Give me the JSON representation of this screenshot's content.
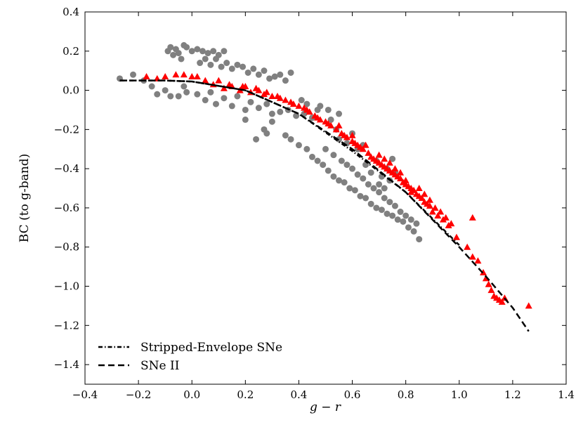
{
  "chart_data": {
    "type": "scatter",
    "title": "",
    "xlabel": "g − r",
    "ylabel": "BC (to g-band)",
    "xlim": [
      -0.4,
      1.4
    ],
    "ylim": [
      -1.5,
      0.4
    ],
    "xticks": [
      -0.4,
      -0.2,
      0.0,
      0.2,
      0.4,
      0.6,
      0.8,
      1.0,
      1.2,
      1.4
    ],
    "yticks": [
      -1.4,
      -1.2,
      -1.0,
      -0.8,
      -0.6,
      -0.4,
      -0.2,
      0.0,
      0.2,
      0.4
    ],
    "xtick_labels": [
      "−0.4",
      "−0.2",
      "0.0",
      "0.2",
      "0.4",
      "0.6",
      "0.8",
      "1.0",
      "1.2",
      "1.4"
    ],
    "ytick_labels": [
      "−1.4",
      "−1.2",
      "−1.0",
      "−0.8",
      "−0.6",
      "−0.4",
      "−0.2",
      "0.0",
      "0.2",
      "0.4"
    ],
    "grid": false,
    "legend_position": "bottom-left",
    "colors": {
      "gray_points": "#808080",
      "red_points": "#ff0000",
      "fit_lines": "#000000"
    },
    "series": [
      {
        "name": "SNe II data",
        "kind": "scatter",
        "marker": "circle",
        "color": "#808080",
        "points": [
          [
            -0.27,
            0.06
          ],
          [
            -0.22,
            0.08
          ],
          [
            -0.18,
            0.05
          ],
          [
            -0.15,
            0.02
          ],
          [
            -0.13,
            -0.02
          ],
          [
            -0.1,
            0.0
          ],
          [
            -0.08,
            -0.03
          ],
          [
            -0.05,
            -0.03
          ],
          [
            -0.03,
            0.02
          ],
          [
            -0.02,
            -0.01
          ],
          [
            -0.09,
            0.2
          ],
          [
            -0.08,
            0.22
          ],
          [
            -0.07,
            0.18
          ],
          [
            -0.06,
            0.21
          ],
          [
            -0.05,
            0.19
          ],
          [
            -0.04,
            0.16
          ],
          [
            -0.03,
            0.23
          ],
          [
            -0.02,
            0.22
          ],
          [
            0.0,
            0.2
          ],
          [
            0.02,
            0.21
          ],
          [
            0.04,
            0.2
          ],
          [
            0.06,
            0.19
          ],
          [
            0.08,
            0.2
          ],
          [
            0.1,
            0.18
          ],
          [
            0.12,
            0.2
          ],
          [
            0.03,
            0.14
          ],
          [
            0.05,
            0.16
          ],
          [
            0.07,
            0.13
          ],
          [
            0.09,
            0.16
          ],
          [
            0.11,
            0.12
          ],
          [
            0.13,
            0.14
          ],
          [
            0.15,
            0.11
          ],
          [
            0.17,
            0.13
          ],
          [
            0.19,
            0.12
          ],
          [
            0.21,
            0.09
          ],
          [
            0.23,
            0.11
          ],
          [
            0.25,
            0.08
          ],
          [
            0.27,
            0.1
          ],
          [
            0.29,
            0.06
          ],
          [
            0.31,
            0.07
          ],
          [
            0.33,
            0.08
          ],
          [
            0.35,
            0.05
          ],
          [
            0.37,
            0.09
          ],
          [
            0.02,
            -0.02
          ],
          [
            0.05,
            -0.05
          ],
          [
            0.07,
            -0.01
          ],
          [
            0.09,
            -0.07
          ],
          [
            0.12,
            -0.04
          ],
          [
            0.15,
            -0.08
          ],
          [
            0.17,
            -0.03
          ],
          [
            0.2,
            -0.1
          ],
          [
            0.22,
            -0.06
          ],
          [
            0.25,
            -0.09
          ],
          [
            0.28,
            -0.07
          ],
          [
            0.3,
            -0.12
          ],
          [
            0.33,
            -0.11
          ],
          [
            0.36,
            -0.1
          ],
          [
            0.39,
            -0.13
          ],
          [
            0.42,
            -0.12
          ],
          [
            0.45,
            -0.14
          ],
          [
            0.48,
            -0.08
          ],
          [
            0.51,
            -0.1
          ],
          [
            0.54,
            -0.2
          ],
          [
            0.2,
            -0.15
          ],
          [
            0.27,
            -0.2
          ],
          [
            0.3,
            -0.16
          ],
          [
            0.35,
            -0.23
          ],
          [
            0.37,
            -0.25
          ],
          [
            0.4,
            -0.28
          ],
          [
            0.43,
            -0.3
          ],
          [
            0.45,
            -0.34
          ],
          [
            0.47,
            -0.36
          ],
          [
            0.49,
            -0.38
          ],
          [
            0.51,
            -0.41
          ],
          [
            0.53,
            -0.44
          ],
          [
            0.55,
            -0.46
          ],
          [
            0.57,
            -0.47
          ],
          [
            0.59,
            -0.5
          ],
          [
            0.61,
            -0.51
          ],
          [
            0.63,
            -0.54
          ],
          [
            0.65,
            -0.55
          ],
          [
            0.67,
            -0.58
          ],
          [
            0.69,
            -0.6
          ],
          [
            0.71,
            -0.61
          ],
          [
            0.73,
            -0.63
          ],
          [
            0.75,
            -0.64
          ],
          [
            0.77,
            -0.66
          ],
          [
            0.79,
            -0.67
          ],
          [
            0.81,
            -0.7
          ],
          [
            0.83,
            -0.72
          ],
          [
            0.85,
            -0.76
          ],
          [
            0.5,
            -0.3
          ],
          [
            0.53,
            -0.33
          ],
          [
            0.56,
            -0.36
          ],
          [
            0.58,
            -0.38
          ],
          [
            0.6,
            -0.4
          ],
          [
            0.62,
            -0.43
          ],
          [
            0.64,
            -0.45
          ],
          [
            0.66,
            -0.48
          ],
          [
            0.68,
            -0.5
          ],
          [
            0.7,
            -0.52
          ],
          [
            0.72,
            -0.55
          ],
          [
            0.74,
            -0.57
          ],
          [
            0.76,
            -0.59
          ],
          [
            0.78,
            -0.62
          ],
          [
            0.8,
            -0.64
          ],
          [
            0.82,
            -0.66
          ],
          [
            0.84,
            -0.68
          ],
          [
            0.65,
            -0.38
          ],
          [
            0.67,
            -0.42
          ],
          [
            0.69,
            -0.36
          ],
          [
            0.71,
            -0.44
          ],
          [
            0.73,
            -0.4
          ],
          [
            0.75,
            -0.35
          ],
          [
            0.7,
            -0.48
          ],
          [
            0.72,
            -0.5
          ],
          [
            0.74,
            -0.46
          ],
          [
            0.76,
            -0.42
          ],
          [
            0.55,
            -0.25
          ],
          [
            0.58,
            -0.27
          ],
          [
            0.6,
            -0.22
          ],
          [
            0.62,
            -0.3
          ],
          [
            0.64,
            -0.28
          ],
          [
            0.41,
            -0.05
          ],
          [
            0.43,
            -0.07
          ],
          [
            0.47,
            -0.1
          ],
          [
            0.52,
            -0.15
          ],
          [
            0.55,
            -0.12
          ],
          [
            0.24,
            -0.25
          ],
          [
            0.28,
            -0.22
          ]
        ]
      },
      {
        "name": "Stripped-Envelope SNe data",
        "kind": "scatter",
        "marker": "triangle",
        "color": "#ff0000",
        "points": [
          [
            -0.17,
            0.07
          ],
          [
            -0.13,
            0.06
          ],
          [
            -0.1,
            0.07
          ],
          [
            -0.06,
            0.08
          ],
          [
            -0.03,
            0.08
          ],
          [
            0.0,
            0.07
          ],
          [
            0.02,
            0.07
          ],
          [
            0.05,
            0.05
          ],
          [
            0.08,
            0.03
          ],
          [
            0.12,
            0.01
          ],
          [
            0.15,
            0.02
          ],
          [
            0.18,
            0.0
          ],
          [
            0.2,
            0.02
          ],
          [
            0.22,
            -0.01
          ],
          [
            0.25,
            0.0
          ],
          [
            0.27,
            -0.02
          ],
          [
            0.3,
            -0.03
          ],
          [
            0.32,
            -0.03
          ],
          [
            0.35,
            -0.05
          ],
          [
            0.37,
            -0.06
          ],
          [
            0.4,
            -0.08
          ],
          [
            0.42,
            -0.09
          ],
          [
            0.44,
            -0.11
          ],
          [
            0.46,
            -0.13
          ],
          [
            0.48,
            -0.15
          ],
          [
            0.5,
            -0.16
          ],
          [
            0.52,
            -0.18
          ],
          [
            0.54,
            -0.2
          ],
          [
            0.56,
            -0.22
          ],
          [
            0.58,
            -0.24
          ],
          [
            0.6,
            -0.26
          ],
          [
            0.62,
            -0.28
          ],
          [
            0.64,
            -0.3
          ],
          [
            0.66,
            -0.32
          ],
          [
            0.68,
            -0.35
          ],
          [
            0.7,
            -0.37
          ],
          [
            0.72,
            -0.39
          ],
          [
            0.74,
            -0.41
          ],
          [
            0.76,
            -0.43
          ],
          [
            0.78,
            -0.45
          ],
          [
            0.8,
            -0.48
          ],
          [
            0.82,
            -0.5
          ],
          [
            0.84,
            -0.53
          ],
          [
            0.86,
            -0.55
          ],
          [
            0.88,
            -0.58
          ],
          [
            0.9,
            -0.62
          ],
          [
            0.92,
            -0.64
          ],
          [
            0.94,
            -0.66
          ],
          [
            0.96,
            -0.69
          ],
          [
            0.55,
            -0.18
          ],
          [
            0.6,
            -0.23
          ],
          [
            0.65,
            -0.28
          ],
          [
            0.7,
            -0.33
          ],
          [
            0.72,
            -0.35
          ],
          [
            0.74,
            -0.37
          ],
          [
            0.76,
            -0.4
          ],
          [
            0.78,
            -0.42
          ],
          [
            0.8,
            -0.46
          ],
          [
            0.82,
            -0.52
          ],
          [
            0.85,
            -0.5
          ],
          [
            0.87,
            -0.53
          ],
          [
            0.89,
            -0.56
          ],
          [
            0.91,
            -0.6
          ],
          [
            0.93,
            -0.62
          ],
          [
            0.95,
            -0.65
          ],
          [
            0.97,
            -0.68
          ],
          [
            0.99,
            -0.75
          ],
          [
            1.05,
            -0.65
          ],
          [
            1.03,
            -0.8
          ],
          [
            1.05,
            -0.85
          ],
          [
            1.07,
            -0.87
          ],
          [
            1.09,
            -0.93
          ],
          [
            1.1,
            -0.96
          ],
          [
            1.11,
            -0.99
          ],
          [
            1.12,
            -1.02
          ],
          [
            1.13,
            -1.05
          ],
          [
            1.14,
            -1.06
          ],
          [
            1.15,
            -1.07
          ],
          [
            1.16,
            -1.08
          ],
          [
            1.17,
            -1.06
          ],
          [
            1.26,
            -1.1
          ],
          [
            0.1,
            0.05
          ],
          [
            0.14,
            0.03
          ],
          [
            0.19,
            0.02
          ],
          [
            0.24,
            0.01
          ],
          [
            0.28,
            -0.01
          ],
          [
            0.33,
            -0.04
          ],
          [
            0.38,
            -0.07
          ],
          [
            0.43,
            -0.1
          ],
          [
            0.47,
            -0.14
          ],
          [
            0.51,
            -0.17
          ],
          [
            0.57,
            -0.23
          ],
          [
            0.61,
            -0.27
          ],
          [
            0.63,
            -0.29
          ],
          [
            0.67,
            -0.34
          ],
          [
            0.69,
            -0.36
          ],
          [
            0.71,
            -0.38
          ],
          [
            0.73,
            -0.4
          ],
          [
            0.75,
            -0.42
          ],
          [
            0.77,
            -0.44
          ],
          [
            0.79,
            -0.47
          ],
          [
            0.81,
            -0.49
          ],
          [
            0.83,
            -0.51
          ],
          [
            0.85,
            -0.54
          ],
          [
            0.87,
            -0.57
          ],
          [
            0.89,
            -0.59
          ]
        ]
      },
      {
        "name": "Stripped-Envelope SNe",
        "kind": "line",
        "style": "dashdot",
        "color": "#000000",
        "x": [
          -0.27,
          -0.1,
          0.0,
          0.2,
          0.4,
          0.6,
          0.8,
          1.0
        ],
        "y": [
          0.05,
          0.05,
          0.045,
          0.0,
          -0.12,
          -0.31,
          -0.52,
          -0.79
        ]
      },
      {
        "name": "SNe II",
        "kind": "line",
        "style": "dashed",
        "color": "#000000",
        "x": [
          -0.27,
          -0.1,
          0.0,
          0.2,
          0.4,
          0.6,
          0.8,
          1.0,
          1.1,
          1.2,
          1.26
        ],
        "y": [
          0.05,
          0.05,
          0.045,
          0.0,
          -0.12,
          -0.3,
          -0.52,
          -0.8,
          -0.95,
          -1.11,
          -1.23
        ]
      }
    ],
    "legend": [
      {
        "label": "Stripped-Envelope SNe",
        "style": "dashdot"
      },
      {
        "label": "SNe II",
        "style": "dashed"
      }
    ]
  }
}
